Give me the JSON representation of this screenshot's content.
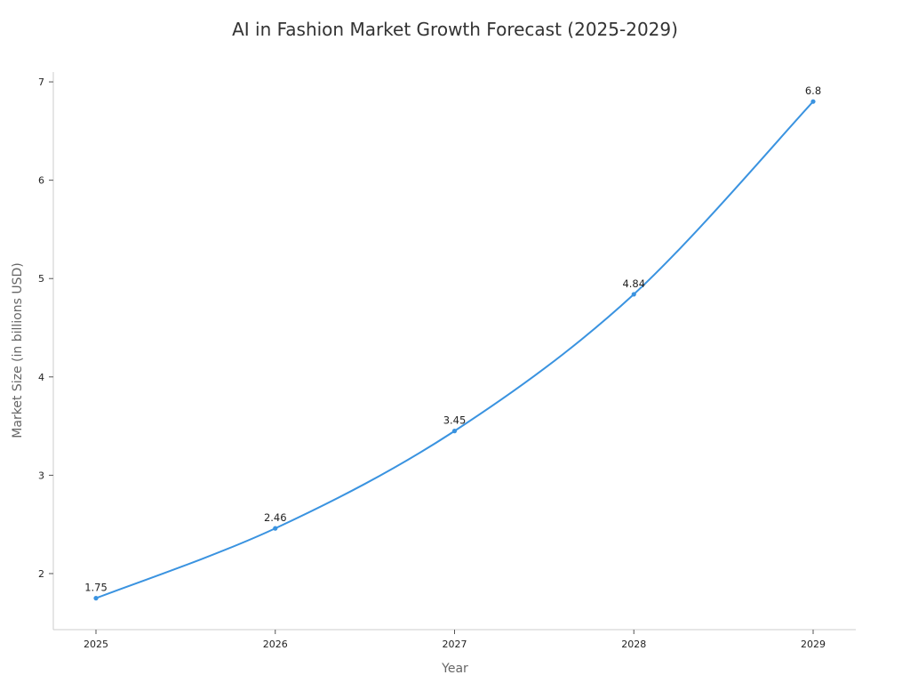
{
  "chart_data": {
    "type": "line",
    "title": "AI in Fashion Market Growth Forecast (2025-2029)",
    "xlabel": "Year",
    "ylabel": "Market Size (in billions USD)",
    "categories": [
      "2025",
      "2026",
      "2027",
      "2028",
      "2029"
    ],
    "series": [
      {
        "values": [
          1.75,
          2.46,
          3.45,
          4.84,
          6.8
        ],
        "color": "#3a93e0"
      }
    ],
    "data_labels": [
      "1.75",
      "2.46",
      "3.45",
      "4.84",
      "6.8"
    ],
    "y_ticks": [
      2,
      3,
      4,
      5,
      6,
      7
    ],
    "ylim": [
      1.43,
      7.1
    ],
    "grid": false,
    "smooth": true
  }
}
